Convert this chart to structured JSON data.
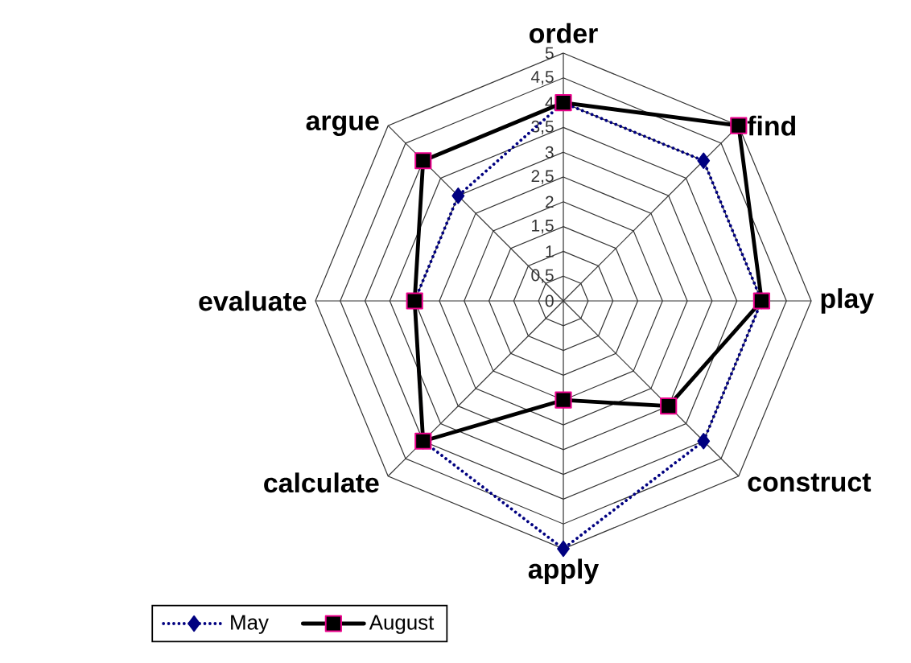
{
  "chart_data": {
    "type": "radar",
    "categories": [
      "order",
      "find",
      "play",
      "construct",
      "apply",
      "calculate",
      "evaluate",
      "argue"
    ],
    "series": [
      {
        "name": "May",
        "color": "#000080",
        "values": [
          4,
          4,
          4,
          4,
          5,
          4,
          3,
          3
        ],
        "marker": "diamond",
        "line_style": "dotted"
      },
      {
        "name": "August",
        "color": "#000000",
        "values": [
          4,
          5,
          4,
          3,
          2,
          4,
          3,
          4
        ],
        "marker": "square",
        "line_style": "solid"
      }
    ],
    "ylim": [
      0,
      5
    ],
    "yticks": [
      0,
      {
        "value": 0.5,
        "label": "0,5"
      },
      1,
      {
        "value": 1.5,
        "label": "1,5"
      },
      2,
      {
        "value": 2.5,
        "label": "2,5"
      },
      3,
      {
        "value": 3.5,
        "label": "3,5"
      },
      4,
      {
        "value": 4.5,
        "label": "4,5"
      },
      5
    ],
    "grid": true,
    "legend": "bottom left"
  }
}
